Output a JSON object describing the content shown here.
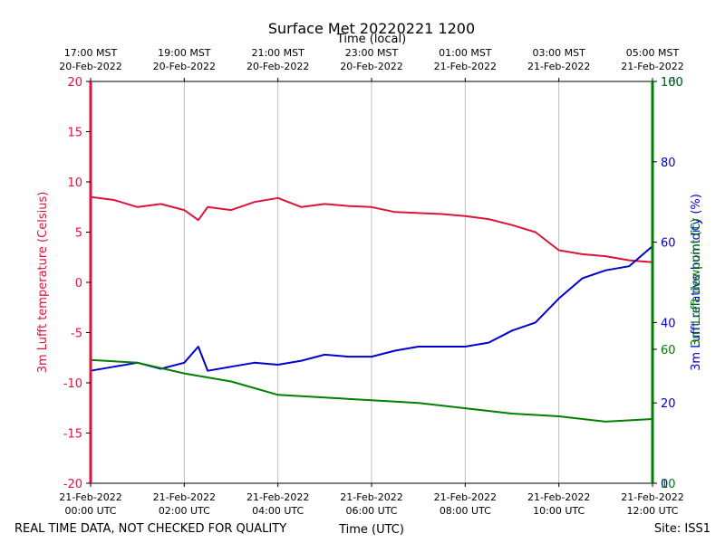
{
  "chart_data": {
    "type": "line",
    "title": "Surface Met 20220221 1200",
    "footer_left": "REAL TIME DATA, NOT CHECKED FOR QUALITY",
    "footer_right": "Site: ISS1",
    "xlabel": "Time (UTC)",
    "xlabel_top": "Time (local)",
    "x_range_hours": [
      0,
      12
    ],
    "x_ticks_bottom": [
      {
        "hour": 0,
        "line1": "21-Feb-2022",
        "line2": "00:00 UTC"
      },
      {
        "hour": 2,
        "line1": "21-Feb-2022",
        "line2": "02:00 UTC"
      },
      {
        "hour": 4,
        "line1": "21-Feb-2022",
        "line2": "04:00 UTC"
      },
      {
        "hour": 6,
        "line1": "21-Feb-2022",
        "line2": "06:00 UTC"
      },
      {
        "hour": 8,
        "line1": "21-Feb-2022",
        "line2": "08:00 UTC"
      },
      {
        "hour": 10,
        "line1": "21-Feb-2022",
        "line2": "10:00 UTC"
      },
      {
        "hour": 12,
        "line1": "21-Feb-2022",
        "line2": "12:00 UTC"
      }
    ],
    "x_ticks_top": [
      {
        "hour": 0,
        "line1": "17:00 MST",
        "line2": "20-Feb-2022"
      },
      {
        "hour": 2,
        "line1": "19:00 MST",
        "line2": "20-Feb-2022"
      },
      {
        "hour": 4,
        "line1": "21:00 MST",
        "line2": "20-Feb-2022"
      },
      {
        "hour": 6,
        "line1": "23:00 MST",
        "line2": "20-Feb-2022"
      },
      {
        "hour": 8,
        "line1": "01:00 MST",
        "line2": "21-Feb-2022"
      },
      {
        "hour": 10,
        "line1": "03:00 MST",
        "line2": "21-Feb-2022"
      },
      {
        "hour": 12,
        "line1": "05:00 MST",
        "line2": "21-Feb-2022"
      }
    ],
    "grid": "vertical",
    "axes": [
      {
        "id": "temp",
        "side": "left",
        "label": "3m Lufft temperature (Celsius)",
        "color": "#dc143c",
        "range": [
          -20,
          20
        ],
        "ticks": [
          "-20",
          "-15",
          "-10",
          "-5",
          "0",
          "5",
          "10",
          "15",
          "20"
        ]
      },
      {
        "id": "rh",
        "side": "right",
        "label": "3m Lufft relative humidity (%)",
        "color": "#0000cd",
        "range": [
          0,
          100
        ],
        "ticks": [
          "0",
          "20",
          "40",
          "60",
          "80",
          "100"
        ]
      },
      {
        "id": "dewpoint",
        "side": "right",
        "label": "3m Lufft dewpoint (C)",
        "color": "#008000",
        "range": [
          10,
          160
        ],
        "ticks": [
          "10",
          "60",
          "160"
        ]
      }
    ],
    "series": [
      {
        "axis": "temp",
        "color": "#dc143c",
        "x": [
          0,
          0.5,
          1,
          1.5,
          2,
          2.3,
          2.5,
          3,
          3.5,
          4,
          4.5,
          5,
          5.5,
          6,
          6.5,
          7,
          7.5,
          8,
          8.5,
          9,
          9.5,
          10,
          10.5,
          11,
          11.5,
          12
        ],
        "y": [
          8.5,
          8.2,
          7.5,
          7.8,
          7.2,
          6.2,
          7.5,
          7.2,
          8.0,
          8.4,
          7.5,
          7.8,
          7.6,
          7.5,
          7.0,
          6.9,
          6.8,
          6.6,
          6.3,
          5.7,
          5.0,
          3.2,
          2.8,
          2.6,
          2.2,
          2.0
        ]
      },
      {
        "axis": "rh",
        "color": "#0000cd",
        "x": [
          0,
          0.5,
          1,
          1.5,
          2,
          2.3,
          2.5,
          3,
          3.5,
          4,
          4.5,
          5,
          5.5,
          6,
          6.5,
          7,
          7.5,
          8,
          8.5,
          9,
          9.5,
          10,
          10.5,
          11,
          11.5,
          12
        ],
        "y": [
          28,
          29,
          30,
          28.5,
          30,
          34,
          28,
          29,
          30,
          29.5,
          30.5,
          32,
          31.5,
          31.5,
          33,
          34,
          34,
          34,
          35,
          38,
          40,
          46,
          51,
          53,
          54,
          59
        ]
      },
      {
        "axis": "dewpoint",
        "color": "#008000",
        "x": [
          0,
          1,
          2,
          3,
          4,
          5,
          6,
          7,
          8,
          9,
          10,
          11,
          12
        ],
        "y": [
          56,
          55,
          51,
          48,
          43,
          42,
          41,
          40,
          38,
          36,
          35,
          33,
          34
        ]
      }
    ]
  }
}
